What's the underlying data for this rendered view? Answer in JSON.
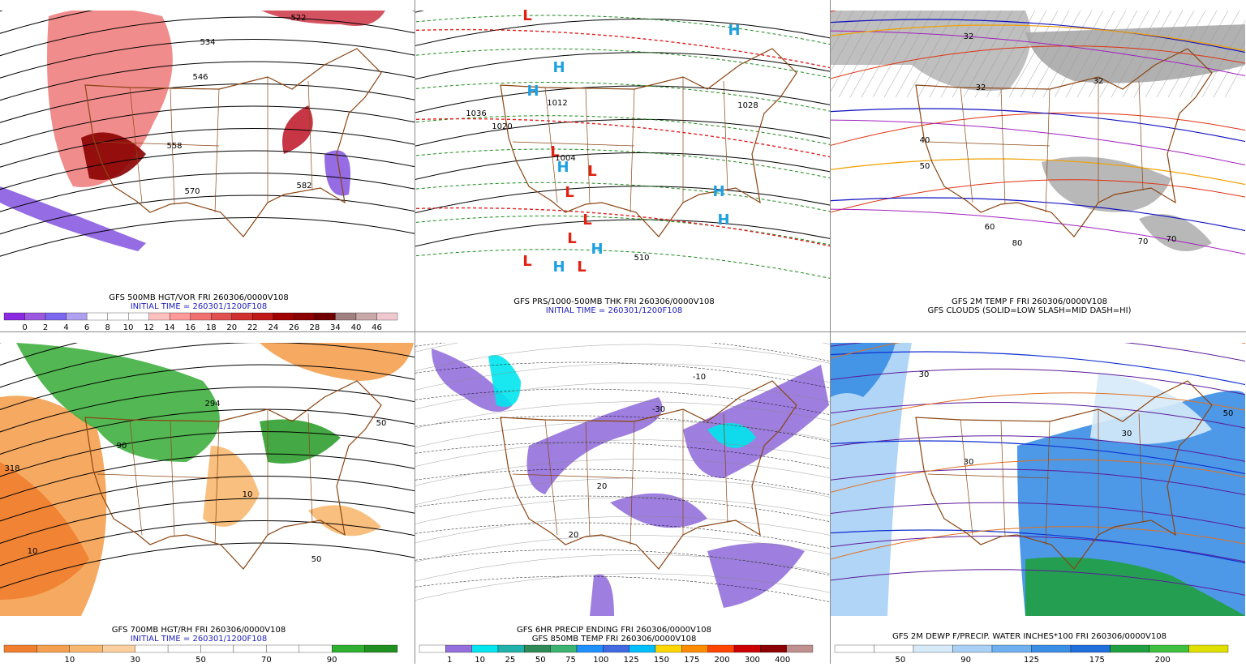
{
  "panels": [
    {
      "caption": [
        {
          "text": "GFS 500MB HGT/VOR FRI 260306/0000V108",
          "color": "#000000"
        },
        {
          "text": "INITIAL TIME = 260301/1200F108",
          "color": "#1f1fb8"
        }
      ],
      "colorbar": {
        "colors": [
          "#8a2be2",
          "#9b59e0",
          "#7b68ee",
          "#b0a0f0",
          "#ffffff",
          "#ffffff",
          "#ffffff",
          "#ffc0c0",
          "#ff9a9a",
          "#f07070",
          "#e05050",
          "#d03030",
          "#c01818",
          "#a00000",
          "#8b0000",
          "#700000",
          "#a08080",
          "#c8a8a8",
          "#f0c8d0"
        ],
        "labels": [
          "0",
          "2",
          "4",
          "6",
          "8",
          "10",
          "12",
          "14",
          "16",
          "18",
          "20",
          "22",
          "24",
          "26",
          "28",
          "34",
          "40",
          "46"
        ]
      },
      "labels": [
        "522",
        "534",
        "546",
        "558",
        "570",
        "582"
      ]
    },
    {
      "caption": [
        {
          "text": "GFS PRS/1000-500MB THK FRI 260306/0000V108",
          "color": "#000000"
        },
        {
          "text": "INITIAL TIME = 260301/1200F108",
          "color": "#1f1fb8"
        }
      ],
      "labels": [
        "L",
        "H",
        "H",
        "L",
        "H",
        "L",
        "L",
        "H",
        "H",
        "L",
        "L",
        "H",
        "L",
        "H",
        "L",
        "H",
        "1036",
        "1020",
        "1012",
        "1004",
        "1028",
        "510"
      ]
    },
    {
      "caption": [
        {
          "text": "GFS 2M TEMP F FRI 260306/0000V108",
          "color": "#000000"
        },
        {
          "text": "GFS CLOUDS (SOLID=LOW SLASH=MID DASH=HI)",
          "color": "#000000"
        }
      ],
      "labels": [
        "32",
        "32",
        "32",
        "40",
        "50",
        "60",
        "70",
        "70",
        "80"
      ]
    },
    {
      "caption": [
        {
          "text": "GFS 700MB HGT/RH FRI 260306/0000V108",
          "color": "#000000"
        },
        {
          "text": "INITIAL TIME = 260301/1200F108",
          "color": "#1f1fb8"
        }
      ],
      "colorbar": {
        "colors": [
          "#f08030",
          "#f5a050",
          "#f8b870",
          "#fbd0a0",
          "#ffffff",
          "#ffffff",
          "#ffffff",
          "#ffffff",
          "#ffffff",
          "#ffffff",
          "#30b030",
          "#209020"
        ],
        "labels": [
          "10",
          "30",
          "50",
          "70",
          "90"
        ]
      },
      "labels": [
        "318",
        "10",
        "10",
        "50",
        "50",
        "90",
        "294"
      ]
    },
    {
      "caption": [
        {
          "text": "GFS 6HR PRECIP ENDING FRI 260306/0000V108",
          "color": "#000000"
        },
        {
          "text": "GFS 850MB TEMP FRI 260306/0000V108",
          "color": "#000000"
        }
      ],
      "colorbar": {
        "colors": [
          "#ffffff",
          "#9370db",
          "#00e5ee",
          "#20b2aa",
          "#2e8b57",
          "#3cb371",
          "#1e90ff",
          "#4169e1",
          "#00bfff",
          "#ffd700",
          "#ff8c00",
          "#ff4500",
          "#cc0000",
          "#8b0000",
          "#c09090"
        ],
        "labels": [
          "1",
          "10",
          "25",
          "50",
          "75",
          "100",
          "125",
          "150",
          "175",
          "200",
          "300",
          "400"
        ]
      },
      "labels": [
        "20",
        "20",
        "-10",
        "-30"
      ]
    },
    {
      "caption": [
        {
          "text": "GFS 2M DEWP F/PRECIP. WATER INCHES*100 FRI 260306/0000V108",
          "color": "#000000"
        }
      ],
      "colorbar": {
        "colors": [
          "#ffffff",
          "#ffffff",
          "#d6eaf8",
          "#a9d0f5",
          "#6fb0f0",
          "#3a8ee6",
          "#1e6fdc",
          "#20a040",
          "#40c040",
          "#e0e000"
        ],
        "labels": [
          "50",
          "90",
          "125",
          "175",
          "200"
        ]
      },
      "labels": [
        "30",
        "30",
        "50",
        "30"
      ]
    }
  ]
}
